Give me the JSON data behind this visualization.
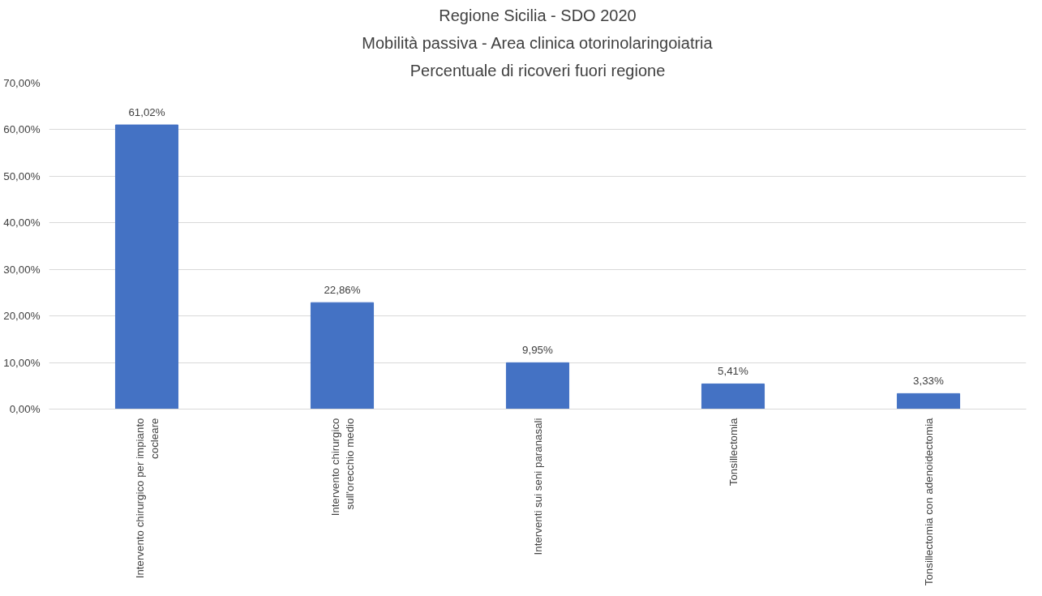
{
  "chart_data": {
    "type": "bar",
    "title": "Regione Sicilia - SDO 2020",
    "subtitle": "Mobilità passiva - Area clinica otorinolaringoiatria",
    "annotations": [
      "Percentuale di ricoveri fuori regione"
    ],
    "categories": [
      "Intervento chirurgico per impianto cocleare",
      "Intervento chirurgico sull'orecchio medio",
      "Interventi sui seni paranasali",
      "Tonsillectomia",
      "Tonsillectomia con adenoidectomia"
    ],
    "values": [
      61.02,
      22.86,
      9.95,
      5.41,
      3.33
    ],
    "value_labels": [
      "61,02%",
      "22,86%",
      "9,95%",
      "5,41%",
      "3,33%"
    ],
    "color": "#4472c4",
    "ylim": [
      0,
      70
    ],
    "yticks": [
      {
        "value": 0,
        "label": "0,00%"
      },
      {
        "value": 10,
        "label": "10,00%"
      },
      {
        "value": 20,
        "label": "20,00%"
      },
      {
        "value": 30,
        "label": "30,00%"
      },
      {
        "value": 40,
        "label": "40,00%"
      },
      {
        "value": 50,
        "label": "50,00%"
      },
      {
        "value": 60,
        "label": "60,00%"
      },
      {
        "value": 70,
        "label": "70,00%"
      }
    ],
    "grid": "y"
  }
}
